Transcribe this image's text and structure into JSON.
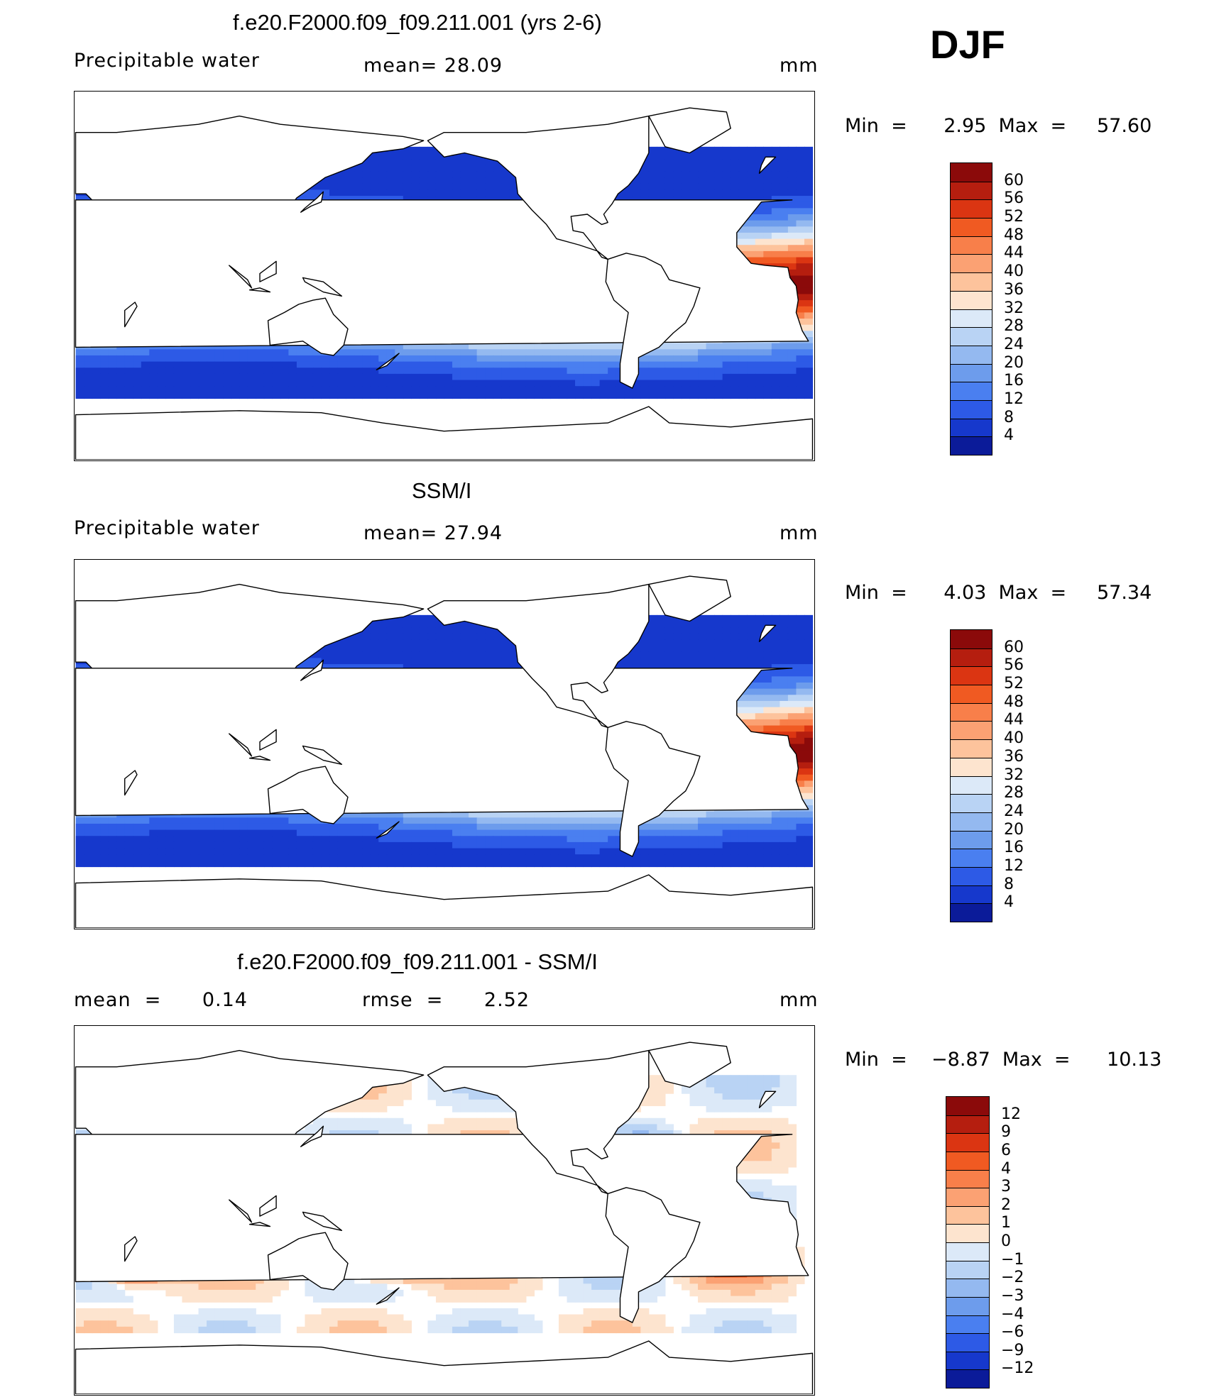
{
  "season": "DJF",
  "panels": [
    {
      "id": "model",
      "title": "f.e20.F2000.f09_f09.211.001 (yrs 2-6)",
      "left_label": "Precipitable  water",
      "center_label": "mean=   28.09",
      "units": "mm",
      "minmax": "Min  =      2.95  Max  =     57.60",
      "colorbar": {
        "labels": [
          "60",
          "56",
          "52",
          "48",
          "44",
          "40",
          "36",
          "32",
          "28",
          "24",
          "20",
          "16",
          "12",
          "8",
          "4"
        ],
        "colors": [
          "#8b0a0a",
          "#b51e0f",
          "#db3512",
          "#f05a22",
          "#f87f4a",
          "#fba173",
          "#fdc39c",
          "#fde4cf",
          "#dce9f8",
          "#b9d3f4",
          "#94b9f0",
          "#6d9cec",
          "#4a7ff0",
          "#2d5ae6",
          "#1638cc",
          "#0b1b99"
        ]
      }
    },
    {
      "id": "obs",
      "title": "SSM/I",
      "left_label": "Precipitable  water",
      "center_label": "mean=   27.94",
      "units": "mm",
      "minmax": "Min  =      4.03  Max  =     57.34",
      "colorbar": {
        "labels": [
          "60",
          "56",
          "52",
          "48",
          "44",
          "40",
          "36",
          "32",
          "28",
          "24",
          "20",
          "16",
          "12",
          "8",
          "4"
        ],
        "colors": [
          "#8b0a0a",
          "#b51e0f",
          "#db3512",
          "#f05a22",
          "#f87f4a",
          "#fba173",
          "#fdc39c",
          "#fde4cf",
          "#dce9f8",
          "#b9d3f4",
          "#94b9f0",
          "#6d9cec",
          "#4a7ff0",
          "#2d5ae6",
          "#1638cc",
          "#0b1b99"
        ]
      }
    },
    {
      "id": "diff",
      "title": "f.e20.F2000.f09_f09.211.001 - SSM/I",
      "left_label": "mean  =      0.14",
      "center_label": "rmse  =      2.52",
      "units": "mm",
      "minmax": "Min  =    −8.87  Max  =      10.13",
      "colorbar": {
        "labels": [
          "12",
          "9",
          "6",
          "4",
          "3",
          "2",
          "1",
          "0",
          "−1",
          "−2",
          "−3",
          "−4",
          "−6",
          "−9",
          "−12"
        ],
        "colors": [
          "#8b0a0a",
          "#b51e0f",
          "#db3512",
          "#f05a22",
          "#f87f4a",
          "#fba173",
          "#fdc39c",
          "#fde4cf",
          "#dce9f8",
          "#b9d3f4",
          "#94b9f0",
          "#6d9cec",
          "#4a7ff0",
          "#2d5ae6",
          "#1638cc",
          "#0b1b99"
        ]
      }
    }
  ]
}
